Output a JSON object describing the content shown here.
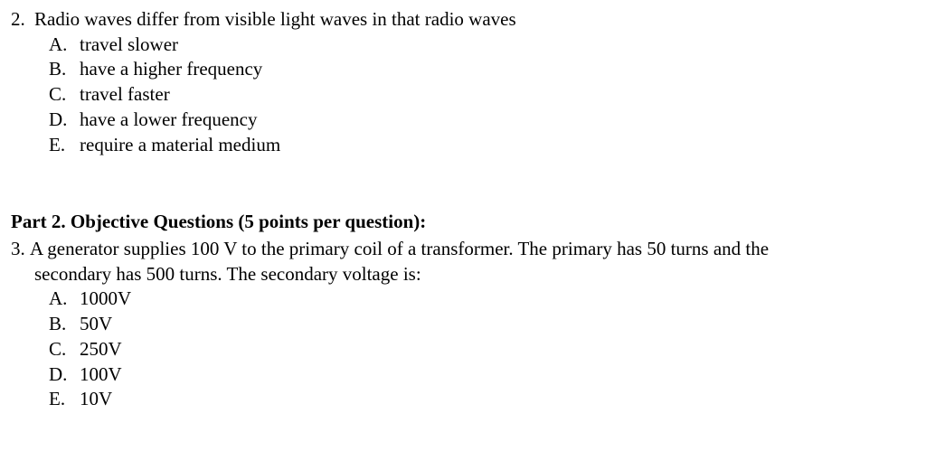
{
  "page": {
    "background_color": "#ffffff",
    "text_color": "#000000",
    "font_family": "Times New Roman",
    "base_font_size_pt": 16
  },
  "q2": {
    "number": "2.",
    "stem": "Radio waves differ from visible light waves in that radio waves",
    "options": [
      {
        "letter": "A.",
        "text": "travel slower"
      },
      {
        "letter": "B.",
        "text": "have a higher frequency"
      },
      {
        "letter": "C.",
        "text": "travel faster"
      },
      {
        "letter": "D.",
        "text": "have a lower frequency"
      },
      {
        "letter": "E.",
        "text": "require a material medium"
      }
    ]
  },
  "section2": {
    "heading": "Part 2. Objective Questions (5 points per question):"
  },
  "q3": {
    "number": "3.",
    "stem_line1": "A generator supplies 100 V to the primary coil of a transformer. The primary has 50 turns and the",
    "stem_line2": "secondary has 500 turns. The secondary voltage is:",
    "options": [
      {
        "letter": "A.",
        "text": "1000V"
      },
      {
        "letter": "B.",
        "text": "50V"
      },
      {
        "letter": "C.",
        "text": "250V"
      },
      {
        "letter": "D.",
        "text": "100V"
      },
      {
        "letter": "E.",
        "text": "10V"
      }
    ]
  }
}
